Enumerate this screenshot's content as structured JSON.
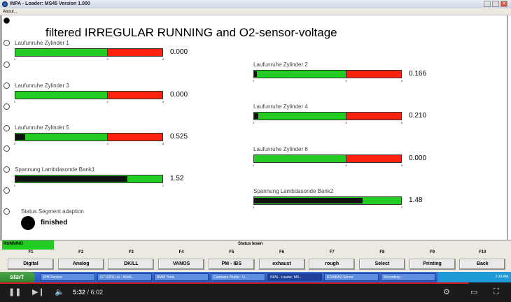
{
  "window": {
    "title": "INPA - Loader:  MS45 Version 1.000",
    "menu": [
      "About..."
    ]
  },
  "headline": "filtered IRREGULAR RUNNING and O2-sensor-voltage",
  "gauges": [
    {
      "label": "Laufunruhe Zylinder 1",
      "value": 0.0,
      "display": "0.000",
      "min": 0,
      "max": 8,
      "green_to": 5,
      "ticks": [
        "0",
        "5",
        "8"
      ]
    },
    {
      "label": "Laufunruhe Zylinder 2",
      "value": 0.166,
      "display": "0.166",
      "min": 0,
      "max": 8,
      "green_to": 5,
      "ticks": [
        "0",
        "5",
        "8"
      ]
    },
    {
      "label": "Laufunruhe Zylinder 3",
      "value": 0.0,
      "display": "0.000",
      "min": 0,
      "max": 8,
      "green_to": 5,
      "ticks": [
        "0",
        "5",
        "8"
      ]
    },
    {
      "label": "Laufunruhe Zylinder 4",
      "value": 0.21,
      "display": "0.210",
      "min": 0,
      "max": 8,
      "green_to": 5,
      "ticks": [
        "0",
        "5",
        "8"
      ]
    },
    {
      "label": "Laufunruhe Zylinder 5",
      "value": 0.525,
      "display": "0.525",
      "min": 0,
      "max": 8,
      "green_to": 5,
      "ticks": [
        "0",
        "5",
        "8"
      ]
    },
    {
      "label": "Laufunruhe Zylinder 6",
      "value": 0.0,
      "display": "0.000",
      "min": 0,
      "max": 8,
      "green_to": 5,
      "ticks": [
        "0",
        "5",
        "8"
      ]
    },
    {
      "label": "Spannung Lambdasonde Bank1",
      "value": 1.52,
      "display": "1.52",
      "min": 0,
      "max": 2,
      "green_to": 2,
      "ticks": [
        "0",
        "2"
      ]
    },
    {
      "label": "Spannung Lambdasonde Bank2",
      "value": 1.48,
      "display": "1.48",
      "min": 0,
      "max": 2,
      "green_to": 2,
      "ticks": [
        "0",
        "2"
      ]
    }
  ],
  "segment": {
    "label": "Status Segment adaption",
    "status": "finished"
  },
  "statusbar": {
    "state": "RUNNING",
    "title": "Status lesen"
  },
  "fkeys": [
    {
      "key": "F1",
      "label": "Digital"
    },
    {
      "key": "F2",
      "label": "Analog"
    },
    {
      "key": "F3",
      "label": "DK/LL"
    },
    {
      "key": "F4",
      "label": "VANOS"
    },
    {
      "key": "F5",
      "label": "PM - IBS"
    },
    {
      "key": "F6",
      "label": "exhaust"
    },
    {
      "key": "F7",
      "label": "rough"
    },
    {
      "key": "F8",
      "label": "Select"
    },
    {
      "key": "F9",
      "label": "Printing"
    },
    {
      "key": "F10",
      "label": "Back"
    }
  ],
  "taskbar": {
    "start": "start",
    "tasks": [
      "IPH-Service",
      "GT13201.rar - WinR...",
      "BMW Tools",
      "Camtasia Studio - U...",
      "INPA - Loader: MS...",
      "EDIABAS Server",
      "Recording..."
    ],
    "active_task": 4,
    "clock": "2:33 AM"
  },
  "player": {
    "current": "5:32",
    "total": "/ 6:02",
    "progress": 0.917
  },
  "colors": {
    "green": "#22cc22",
    "red": "#ff2211",
    "fill": "#111111"
  }
}
